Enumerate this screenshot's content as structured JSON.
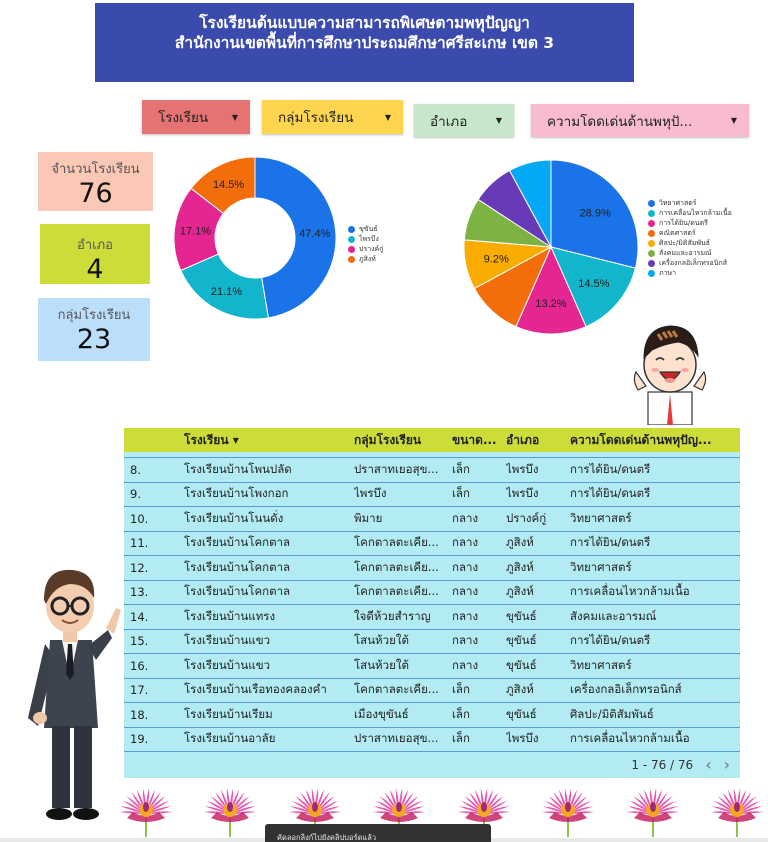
{
  "header": {
    "title_line1": "โรงเรียนต้นแบบความสามารถพิเศษตามพหุปัญญา",
    "title_line2": "สำนักงานเขตพื้นที่การศึกษาประถมศึกษาศรีสะเกษ เขต 3",
    "color": "#3b4aad"
  },
  "filters": [
    {
      "label": "โรงเรียน",
      "icon": "caret-down-icon",
      "color": "#e57373"
    },
    {
      "label": "กลุ่มโรงเรียน",
      "icon": "caret-down-icon",
      "color": "#fdd54e"
    },
    {
      "label": "อำเภอ",
      "icon": "caret-down-icon",
      "color": "#c8e6c9"
    },
    {
      "label": "ความโดดเด่นด้านพหุปั...",
      "icon": "caret-down-icon",
      "color": "#f8bbd0"
    }
  ],
  "scorecards": [
    {
      "label": "จำนวนโรงเรียน",
      "value": "76",
      "color": "#fcc8b6"
    },
    {
      "label": "อำเภอ",
      "value": "4",
      "color": "#cddc39"
    },
    {
      "label": "กลุ่มโรงเรียน",
      "value": "23",
      "color": "#bbdefb"
    }
  ],
  "chart_data": [
    {
      "type": "pie",
      "subtype": "donut",
      "title": "",
      "categories": [
        "ขุขันธ์",
        "ไพรบึง",
        "ปรางค์กู่",
        "ภูสิงห์"
      ],
      "values": [
        47.4,
        21.1,
        17.1,
        14.5
      ],
      "labels": [
        "47.4%",
        "21.1%",
        "17.1%",
        "14.5%"
      ],
      "colors": [
        "#1a73e8",
        "#12b5cb",
        "#e52592",
        "#f46d0b"
      ],
      "legend_position": "right"
    },
    {
      "type": "pie",
      "title": "",
      "categories": [
        "วิทยาศาสตร์",
        "การเคลื่อนไหวกล้ามเนื้อ",
        "การได้ยิน/ดนตรี",
        "คณิตศาสตร์",
        "ศิลปะ/มิติสัมพันธ์",
        "สังคมและอารมณ์",
        "เครื่องกลอิเล็กทรอนิกส์",
        "ภาษา"
      ],
      "values": [
        28.9,
        14.5,
        13.2,
        10.5,
        9.2,
        7.9,
        7.9,
        7.9
      ],
      "labels": [
        "28.9%",
        "14.5%",
        "13.2%",
        "",
        "9.2%",
        "",
        "",
        ""
      ],
      "colors": [
        "#1a73e8",
        "#12b5cb",
        "#e52592",
        "#f46d0b",
        "#f9ab00",
        "#7cb342",
        "#673ab7",
        "#03a9f4"
      ],
      "legend_position": "right"
    }
  ],
  "table": {
    "headers": [
      "",
      "โรงเรียน ▾",
      "กลุ่มโรงเรียน",
      "ขนาด...",
      "อำเภอ",
      "ความโดดเด่นด้านพหุปัญ..."
    ],
    "rows": [
      [
        "8.",
        "โรงเรียนบ้านโพนปลัด",
        "ปราสาทเยอสุข...",
        "เล็ก",
        "ไพรบึง",
        "การได้ยิน/ดนตรี"
      ],
      [
        "9.",
        "โรงเรียนบ้านโพงกอก",
        "ไพรบึง",
        "เล็ก",
        "ไพรบึง",
        "การได้ยิน/ดนตรี"
      ],
      [
        "10.",
        "โรงเรียนบ้านโนนดั่ง",
        "พิมาย",
        "กลาง",
        "ปรางค์กู่",
        "วิทยาศาสตร์"
      ],
      [
        "11.",
        "โรงเรียนบ้านโคกตาล",
        "โคกตาลตะเคีย...",
        "กลาง",
        "ภูสิงห์",
        "การได้ยิน/ดนตรี"
      ],
      [
        "12.",
        "โรงเรียนบ้านโคกตาล",
        "โคกตาลตะเคีย...",
        "กลาง",
        "ภูสิงห์",
        "วิทยาศาสตร์"
      ],
      [
        "13.",
        "โรงเรียนบ้านโคกตาล",
        "โคกตาลตะเคีย...",
        "กลาง",
        "ภูสิงห์",
        "การเคลื่อนไหวกล้ามเนื้อ"
      ],
      [
        "14.",
        "โรงเรียนบ้านแทรง",
        "ใจดีห้วยสำราญ",
        "กลาง",
        "ขุขันธ์",
        "สังคมและอารมณ์"
      ],
      [
        "15.",
        "โรงเรียนบ้านแขว",
        "โสนห้วยใต้",
        "กลาง",
        "ขุขันธ์",
        "การได้ยิน/ดนตรี"
      ],
      [
        "16.",
        "โรงเรียนบ้านแขว",
        "โสนห้วยใต้",
        "กลาง",
        "ขุขันธ์",
        "วิทยาศาสตร์"
      ],
      [
        "17.",
        "โรงเรียนบ้านเรือทองคลองคำ",
        "โคกตาลตะเคีย...",
        "เล็ก",
        "ภูสิงห์",
        "เครื่องกลอิเล็กทรอนิกส์"
      ],
      [
        "18.",
        "โรงเรียนบ้านเรียม",
        "เมืองขุขันธ์",
        "เล็ก",
        "ขุขันธ์",
        "ศิลปะ/มิติสัมพันธ์"
      ],
      [
        "19.",
        "โรงเรียนบ้านอาลัย",
        "ปราสาทเยอสุข...",
        "เล็ก",
        "ไพรบึง",
        "การเคลื่อนไหวกล้ามเนื้อ"
      ]
    ],
    "pagination": {
      "text": "1 - 76 / 76",
      "prev": "‹",
      "next": "›"
    },
    "header_color": "#cddc39",
    "row_color": "#b2ebf2"
  },
  "toast": {
    "text": "คัดลอกลิงก์ไปยังคลิปบอร์ดแล้ว"
  },
  "decorations": {
    "flower_count": 8
  }
}
